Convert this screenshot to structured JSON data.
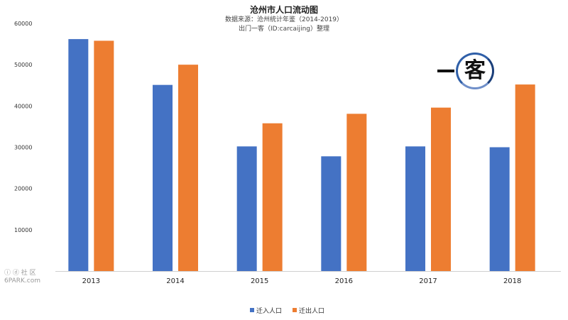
{
  "chart_data": {
    "type": "bar",
    "title": "沧州市人口流动图",
    "subtitle_lines": [
      "数据来源：沧州统计年鉴（2014-2019）",
      "出门一客（ID:carcaijing）整理"
    ],
    "categories": [
      "2013",
      "2014",
      "2015",
      "2016",
      "2017",
      "2018"
    ],
    "series": [
      {
        "name": "迁入人口",
        "color": "#4472c4",
        "values": [
          56200,
          45100,
          30200,
          27800,
          30200,
          30000
        ]
      },
      {
        "name": "迁出人口",
        "color": "#ed7d31",
        "values": [
          55800,
          50000,
          35800,
          38100,
          39600,
          45200
        ]
      }
    ],
    "ylim": [
      0,
      60000
    ],
    "yticks": [
      "60000",
      "50000",
      "40000",
      "30000",
      "20000",
      "10000"
    ],
    "grid": false,
    "legend_position": "bottom"
  },
  "logo": {
    "char": "客"
  },
  "watermark": {
    "line1": "ⓘ ⓓ 社 区",
    "line2": "6PARK.com"
  }
}
